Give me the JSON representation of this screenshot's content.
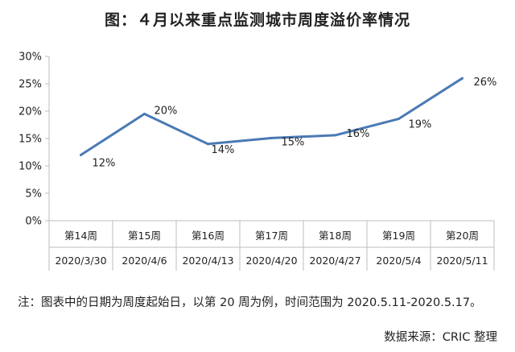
{
  "title": "图：４月以来重点监测城市周度溢价率情况",
  "footnote": "注：图表中的日期为周度起始日，以第 20 周为例，时间范围为 2020.5.11-2020.5.17。",
  "source": "数据来源：CRIC 整理",
  "colors": {
    "line": "#4a7ab5",
    "axis": "#bdbdbd",
    "grid": "#bdbdbd"
  },
  "chart_data": {
    "type": "line",
    "title": "图：４月以来重点监测城市周度溢价率情况",
    "categories": [
      [
        "第14周",
        "2020/3/30"
      ],
      [
        "第15周",
        "2020/4/6"
      ],
      [
        "第16周",
        "2020/4/13"
      ],
      [
        "第17周",
        "2020/4/20"
      ],
      [
        "第18周",
        "2020/4/27"
      ],
      [
        "第19周",
        "2020/5/4"
      ],
      [
        "第20周",
        "2020/5/11"
      ]
    ],
    "series": [
      {
        "values": [
          0.12,
          0.195,
          0.14,
          0.151,
          0.156,
          0.186,
          0.26
        ],
        "labels": [
          "12%",
          "20%",
          "14%",
          "15%",
          "16%",
          "19%",
          "26%"
        ]
      }
    ],
    "yticks": [
      "0%",
      "5%",
      "10%",
      "15%",
      "20%",
      "25%",
      "30%"
    ],
    "ylim": [
      0,
      0.3
    ],
    "grid": false,
    "legend": "none"
  }
}
